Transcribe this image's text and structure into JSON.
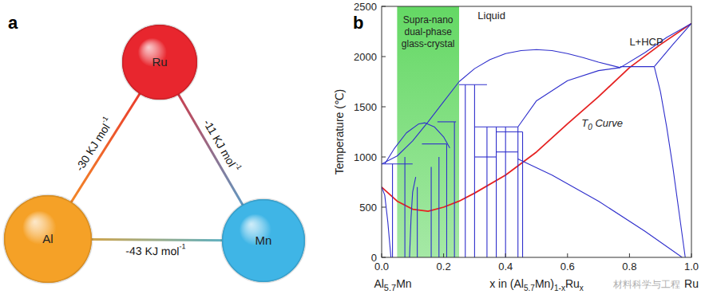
{
  "diagram": {
    "title": "a",
    "nodes": [
      {
        "label": "Ru",
        "color": "#e8262e"
      },
      {
        "label": "Al",
        "color": "#f5a127"
      },
      {
        "label": "Mn",
        "color": "#3fb5e6"
      }
    ],
    "edges": [
      {
        "from": "Ru",
        "to": "Al",
        "value": -30,
        "unit": "KJ mol",
        "unit_sup": "-1"
      },
      {
        "from": "Ru",
        "to": "Mn",
        "value": -11,
        "unit": "KJ mol",
        "unit_sup": "-1"
      },
      {
        "from": "Al",
        "to": "Mn",
        "value": -43,
        "unit": "KJ mol",
        "unit_sup": "-1"
      }
    ]
  },
  "chart_data": {
    "type": "line",
    "title": "b",
    "xlabel": [
      {
        "text": "x in (Al"
      },
      {
        "text": "5.7",
        "sub": true
      },
      {
        "text": "Mn)"
      },
      {
        "text": "1-x",
        "sub": true
      },
      {
        "text": "Ru"
      },
      {
        "text": "x",
        "sub": true
      }
    ],
    "ylabel": "Temperature (℃)",
    "xlim": [
      0,
      1
    ],
    "ylim": [
      0,
      2500
    ],
    "xticks": [
      {
        "value": 0,
        "label": "0.0"
      },
      0.2,
      0.4,
      0.6,
      0.8,
      {
        "value": 1,
        "label": "1.0"
      }
    ],
    "yticks": [
      0,
      500,
      1000,
      1500,
      2000,
      2500
    ],
    "grid": false,
    "color": "#2f2fcc",
    "highlight": {
      "x": [
        0.05,
        0.25
      ],
      "label": [
        "Supra-nano",
        "dual-phase",
        "glass-crystal"
      ],
      "color": "#5cd65c"
    },
    "annotations": [
      {
        "parts": [
          {
            "text": "Liquid"
          }
        ]
      },
      {
        "parts": [
          {
            "text": "L+HCP"
          }
        ]
      },
      {
        "parts": [
          {
            "text": "T"
          },
          {
            "text": "0",
            "sub": true
          },
          {
            "text": " Curve"
          }
        ]
      },
      {
        "parts": [
          {
            "text": "Al"
          },
          {
            "text": "5.7",
            "sub": true
          },
          {
            "text": "Mn"
          }
        ]
      },
      {
        "parts": [
          {
            "text": "Ru"
          }
        ]
      },
      {
        "parts": [
          {
            "text": "材料科学与工程"
          }
        ]
      }
    ],
    "series": [
      {
        "color": "#e52222",
        "x": [
          0,
          0.05,
          0.1,
          0.15,
          0.2,
          0.25,
          0.3,
          0.4,
          0.5,
          0.6,
          0.7,
          0.8,
          0.9,
          1.0
        ],
        "values": [
          700,
          560,
          480,
          460,
          500,
          560,
          640,
          820,
          1050,
          1330,
          1600,
          1890,
          2120,
          2330
        ]
      },
      {
        "x": [
          0,
          0.05,
          0.1,
          0.15,
          0.2,
          0.25
        ],
        "values": [
          930,
          1010,
          1160,
          1350,
          1550,
          1750
        ]
      },
      {
        "x": [
          0.25,
          0.3,
          0.35,
          0.4,
          0.45,
          0.5,
          0.55,
          0.6,
          0.65,
          0.7,
          0.77
        ],
        "values": [
          1750,
          1880,
          1970,
          2030,
          2060,
          2070,
          2060,
          2030,
          1990,
          1945,
          1890
        ]
      },
      {
        "x": [
          0.77,
          0.85,
          0.92,
          1.0
        ],
        "values": [
          1890,
          2040,
          2190,
          2330
        ]
      },
      {
        "x": [
          0.88,
          0.94,
          1.0
        ],
        "values": [
          1900,
          2120,
          2330
        ]
      },
      {
        "x": [
          0.77,
          0.88
        ],
        "values": [
          1900,
          1900
        ]
      },
      {
        "x": [
          0.88,
          0.9,
          0.92,
          0.94,
          0.96,
          0.98
        ],
        "values": [
          1900,
          1650,
          1300,
          900,
          450,
          0
        ]
      },
      {
        "x": [
          0.44,
          0.5,
          0.6,
          0.7,
          0.77
        ],
        "values": [
          1300,
          1560,
          1760,
          1860,
          1890
        ]
      },
      {
        "x": [
          0.44,
          0.55,
          0.7,
          0.85,
          0.97
        ],
        "values": [
          980,
          820,
          560,
          260,
          0
        ]
      },
      {
        "x": [
          0.01,
          0.04,
          0.08,
          0.12,
          0.14,
          0.17,
          0.2,
          0.22
        ],
        "values": [
          930,
          1080,
          1240,
          1330,
          1340,
          1300,
          1200,
          1090
        ]
      },
      {
        "x": [
          0,
          0.01,
          0.02,
          0.03
        ],
        "values": [
          700,
          620,
          350,
          0
        ]
      },
      {
        "x": [
          0.09,
          0.095,
          0.1,
          0.11
        ],
        "values": [
          0,
          400,
          650,
          800
        ]
      },
      {
        "x": [
          0.035,
          0.035
        ],
        "values": [
          0,
          930
        ]
      },
      {
        "x": [
          0.075,
          0.075
        ],
        "values": [
          0,
          1000
        ]
      },
      {
        "x": [
          0.115,
          0.115
        ],
        "values": [
          0,
          700
        ]
      },
      {
        "x": [
          0.16,
          0.16
        ],
        "values": [
          0,
          900
        ]
      },
      {
        "x": [
          0.185,
          0.185
        ],
        "values": [
          0,
          1000
        ]
      },
      {
        "x": [
          0.21,
          0.21
        ],
        "values": [
          0,
          1130
        ]
      },
      {
        "x": [
          0.235,
          0.235
        ],
        "values": [
          0,
          1350
        ]
      },
      {
        "x": [
          0.27,
          0.27
        ],
        "values": [
          0,
          1720
        ]
      },
      {
        "x": [
          0.3,
          0.3
        ],
        "values": [
          0,
          1720
        ]
      },
      {
        "x": [
          0.34,
          0.34
        ],
        "values": [
          0,
          1300
        ]
      },
      {
        "x": [
          0.37,
          0.37
        ],
        "values": [
          0,
          1300
        ]
      },
      {
        "x": [
          0.4,
          0.4
        ],
        "values": [
          0,
          1300
        ]
      },
      {
        "x": [
          0.44,
          0.44
        ],
        "values": [
          0,
          1300
        ]
      },
      {
        "x": [
          0.455,
          0.455
        ],
        "values": [
          0,
          1250
        ]
      },
      {
        "x": [
          0,
          0.1
        ],
        "values": [
          930,
          930
        ]
      },
      {
        "x": [
          0.13,
          0.21
        ],
        "values": [
          1130,
          1130
        ]
      },
      {
        "x": [
          0.18,
          0.24
        ],
        "values": [
          1350,
          1350
        ]
      },
      {
        "x": [
          0.25,
          0.34
        ],
        "values": [
          1720,
          1720
        ]
      },
      {
        "x": [
          0.3,
          0.44
        ],
        "values": [
          1300,
          1300
        ]
      },
      {
        "x": [
          0.37,
          0.455
        ],
        "values": [
          1250,
          1250
        ]
      },
      {
        "x": [
          0.37,
          0.44
        ],
        "values": [
          1050,
          1050
        ]
      },
      {
        "x": [
          0.3,
          0.37
        ],
        "values": [
          1000,
          1000
        ]
      }
    ]
  }
}
